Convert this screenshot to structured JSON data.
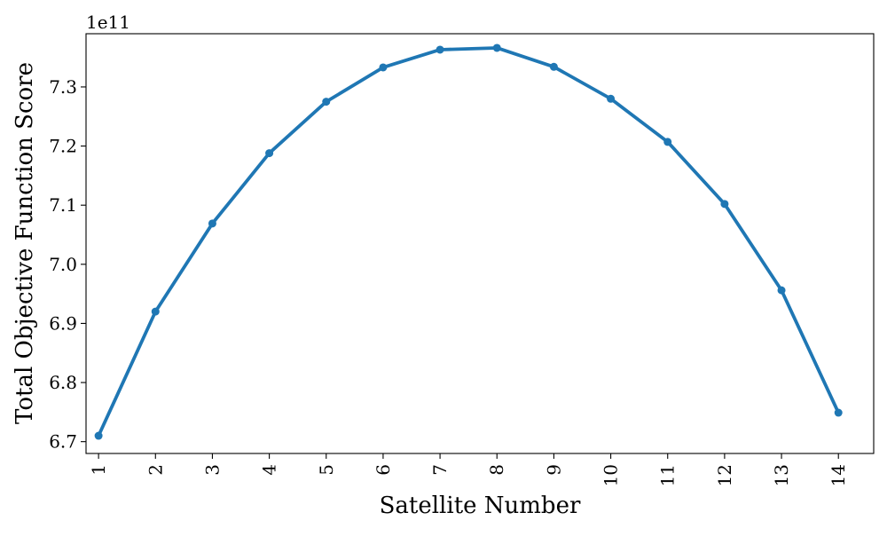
{
  "chart_data": {
    "type": "line",
    "title": "",
    "xlabel": "Satellite Number",
    "ylabel": "Total Objective Function Score",
    "y_offset_label": "1e11",
    "x_tick_labels": [
      "1",
      "2",
      "3",
      "4",
      "5",
      "6",
      "7",
      "8",
      "9",
      "10",
      "11",
      "12",
      "13",
      "14"
    ],
    "x": [
      1,
      2,
      3,
      4,
      5,
      6,
      7,
      8,
      9,
      10,
      11,
      12,
      13,
      14
    ],
    "xlim": [
      0.78,
      14.62
    ],
    "ylim": [
      6.68,
      7.39
    ],
    "y_ticks": [
      6.7,
      6.8,
      6.9,
      7.0,
      7.1,
      7.2,
      7.3
    ],
    "y_tick_labels": [
      "6.7",
      "6.8",
      "6.9",
      "7.0",
      "7.1",
      "7.2",
      "7.3"
    ],
    "grid": false,
    "series": [
      {
        "color": "#1f77b4",
        "marker": "circle",
        "values": [
          6.71,
          6.92,
          7.069,
          7.188,
          7.275,
          7.333,
          7.363,
          7.366,
          7.334,
          7.28,
          7.207,
          7.102,
          6.956,
          6.749
        ]
      }
    ]
  }
}
